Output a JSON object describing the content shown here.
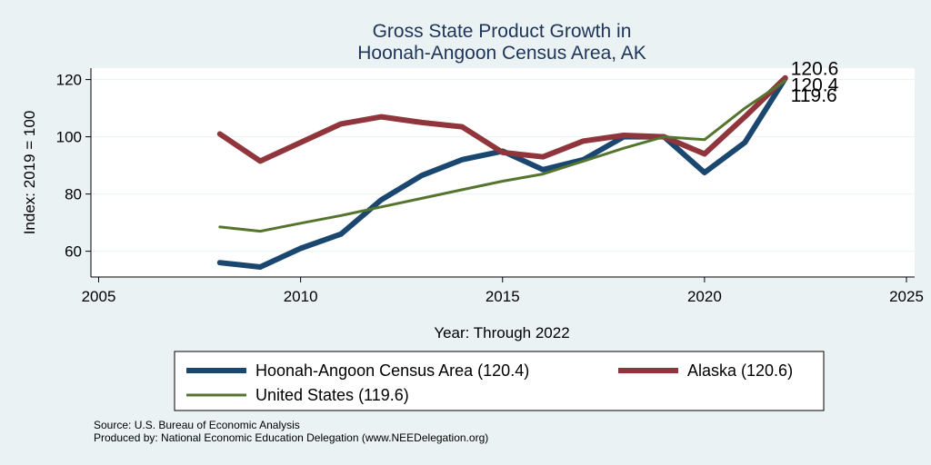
{
  "chart_data": {
    "type": "line",
    "title": [
      "Gross State Product Growth in",
      "Hoonah-Angoon Census Area, AK"
    ],
    "xlabel": "Year: Through 2022",
    "ylabel": "Index: 2019 = 100",
    "xlim": [
      2005,
      2025
    ],
    "ylim": [
      51,
      124
    ],
    "xticks": [
      2005,
      2010,
      2015,
      2020,
      2025
    ],
    "yticks": [
      60,
      80,
      100,
      120
    ],
    "grid": true,
    "x": [
      2008,
      2009,
      2010,
      2011,
      2012,
      2013,
      2014,
      2015,
      2016,
      2017,
      2018,
      2019,
      2020,
      2021,
      2022
    ],
    "series": [
      {
        "name": "Hoonah-Angoon Census Area (120.4)",
        "color": "#1a476f",
        "values": [
          56,
          54.5,
          61,
          66,
          78,
          86.5,
          92,
          95,
          88.5,
          92,
          100,
          100,
          87.5,
          98,
          120.4
        ],
        "end_label": "120.4"
      },
      {
        "name": "Alaska (120.6)",
        "color": "#90353b",
        "values": [
          101,
          91.5,
          98,
          104.5,
          107,
          105,
          103.5,
          94.5,
          93,
          98.5,
          100.5,
          100,
          94,
          107,
          120.6
        ],
        "end_label": "120.6"
      },
      {
        "name": "United States (119.6)",
        "color": "#55752f",
        "values": [
          68.5,
          67,
          69.8,
          72.5,
          75.5,
          78.5,
          81.5,
          84.5,
          87,
          91.5,
          96,
          100,
          99,
          110,
          119.6
        ],
        "end_label": "119.6"
      }
    ],
    "legend_position": "bottom"
  },
  "footer": {
    "source": "Source: U.S. Bureau of Economic Analysis",
    "produced_by": "Produced by: National Economic Education Delegation (www.NEEDelegation.org)"
  }
}
